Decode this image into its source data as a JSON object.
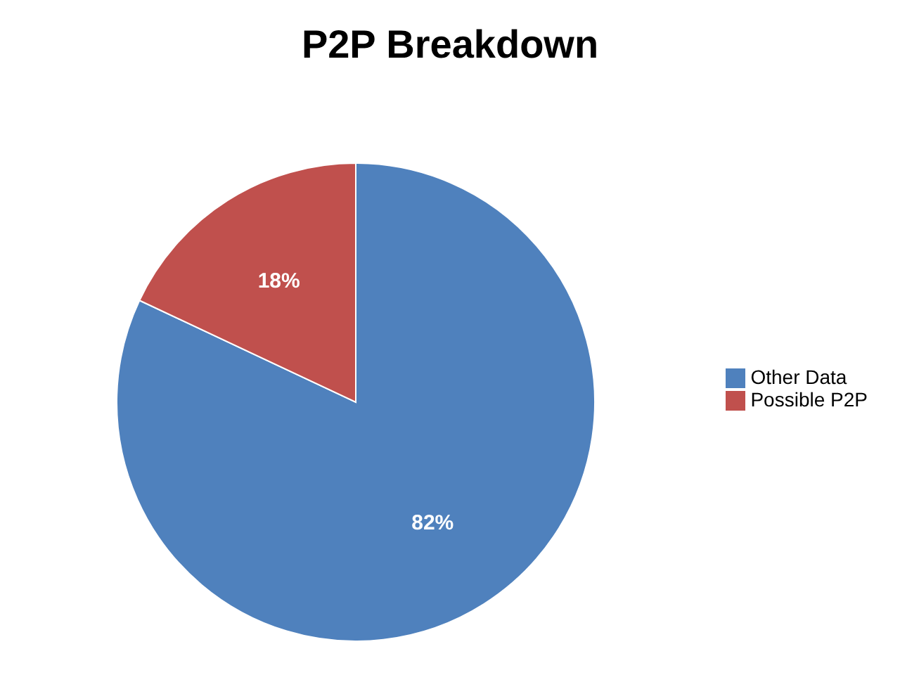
{
  "chart_data": {
    "type": "pie",
    "title": "P2P Breakdown",
    "categories": [
      "Other Data",
      "Possible P2P"
    ],
    "values": [
      82,
      18
    ],
    "colors": [
      "#4f81bd",
      "#c0504d"
    ],
    "value_labels": [
      "82%",
      "18%"
    ],
    "legend": "right"
  }
}
